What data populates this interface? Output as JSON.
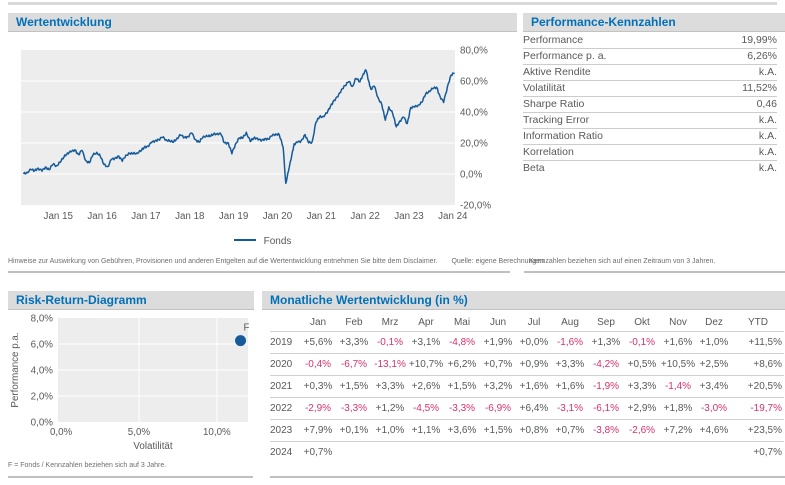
{
  "colors": {
    "accent_blue": "#0070b9",
    "line_blue": "#165b99",
    "negative_red": "#d5326e",
    "text_gray": "#58595b",
    "plot_bg": "#ededed"
  },
  "panels": {
    "performance": {
      "title": "Wertentwicklung"
    },
    "metrics": {
      "title": "Performance-Kennzahlen",
      "rows": [
        {
          "label": "Performance",
          "value": "19,99%"
        },
        {
          "label": "Performance p. a.",
          "value": "6,26%"
        },
        {
          "label": "Aktive Rendite",
          "value": "k.A."
        },
        {
          "label": "Volatilität",
          "value": "11,52%"
        },
        {
          "label": "Sharpe Ratio",
          "value": "0,46"
        },
        {
          "label": "Tracking Error",
          "value": "k.A."
        },
        {
          "label": "Information Ratio",
          "value": "k.A."
        },
        {
          "label": "Korrelation",
          "value": "k.A."
        },
        {
          "label": "Beta",
          "value": "k.A."
        }
      ],
      "footnote": "Kennzahlen beziehen sich auf einen Zeitraum von 3 Jahren."
    },
    "risk": {
      "title": "Risk-Return-Diagramm",
      "footnote": "F = Fonds / Kennzahlen beziehen sich auf 3 Jahre."
    },
    "monthly": {
      "title": "Monatliche Wertentwicklung (in %)",
      "columns": [
        "Jan",
        "Feb",
        "Mrz",
        "Apr",
        "Mai",
        "Jun",
        "Jul",
        "Aug",
        "Sep",
        "Okt",
        "Nov",
        "Dez",
        "YTD"
      ],
      "rows": [
        {
          "year": "2019",
          "values": [
            "+5,6%",
            "+3,3%",
            "-0,1%",
            "+3,1%",
            "-4,8%",
            "+1,9%",
            "+0,0%",
            "-1,6%",
            "+1,3%",
            "-0,1%",
            "+1,6%",
            "+1,0%",
            "+11,5%"
          ]
        },
        {
          "year": "2020",
          "values": [
            "-0,4%",
            "-6,7%",
            "-13,1%",
            "+10,7%",
            "+6,2%",
            "+0,7%",
            "+0,9%",
            "+3,3%",
            "-4,2%",
            "+0,5%",
            "+10,5%",
            "+2,5%",
            "+8,6%"
          ]
        },
        {
          "year": "2021",
          "values": [
            "+0,3%",
            "+1,5%",
            "+3,3%",
            "+2,6%",
            "+1,5%",
            "+3,2%",
            "+1,6%",
            "+1,6%",
            "-1,9%",
            "+3,3%",
            "-1,4%",
            "+3,4%",
            "+20,5%"
          ]
        },
        {
          "year": "2022",
          "values": [
            "-2,9%",
            "-3,3%",
            "+1,2%",
            "-4,5%",
            "-3,3%",
            "-6,9%",
            "+6,4%",
            "-3,1%",
            "-6,1%",
            "+2,9%",
            "+1,8%",
            "-3,0%",
            "-19,7%"
          ]
        },
        {
          "year": "2023",
          "values": [
            "+7,9%",
            "+0,1%",
            "+1,0%",
            "+1,1%",
            "+3,6%",
            "+1,5%",
            "+0,8%",
            "+0,7%",
            "-3,8%",
            "-2,6%",
            "+7,2%",
            "+4,6%",
            "+23,5%"
          ]
        },
        {
          "year": "2024",
          "values": [
            "+0,7%",
            "",
            "",
            "",
            "",
            "",
            "",
            "",
            "",
            "",
            "",
            "",
            "+0,7%"
          ]
        }
      ]
    }
  },
  "footnotes": {
    "disclaimer": "Hinweise zur Auswirkung von Gebühren, Provisionen und anderen Entgelten auf die Wertentwicklung entnehmen Sie bitte dem Disclaimer.",
    "source": "Quelle: eigene Berechnungen"
  },
  "chart_data": [
    {
      "type": "line",
      "title": "Wertentwicklung",
      "ylim": [
        -20,
        80
      ],
      "xlim": [
        2014.15,
        2024.05
      ],
      "grid": true,
      "legend_position": "bottom",
      "y_ticks": [
        {
          "v": 80,
          "label": "80,0%"
        },
        {
          "v": 60,
          "label": "60,0%"
        },
        {
          "v": 40,
          "label": "40,0%"
        },
        {
          "v": 20,
          "label": "20,0%"
        },
        {
          "v": 0,
          "label": "0,0%"
        },
        {
          "v": -20,
          "label": "-20,0%"
        }
      ],
      "x_ticks": [
        {
          "v": 2015,
          "label": "Jan 15"
        },
        {
          "v": 2016,
          "label": "Jan 16"
        },
        {
          "v": 2017,
          "label": "Jan 17"
        },
        {
          "v": 2018,
          "label": "Jan 18"
        },
        {
          "v": 2019,
          "label": "Jan 19"
        },
        {
          "v": 2020,
          "label": "Jan 20"
        },
        {
          "v": 2021,
          "label": "Jan 21"
        },
        {
          "v": 2022,
          "label": "Jan 22"
        },
        {
          "v": 2023,
          "label": "Jan 23"
        },
        {
          "v": 2024,
          "label": "Jan 24"
        }
      ],
      "series": [
        {
          "name": "Fonds",
          "points": [
            [
              2014.21,
              0.0
            ],
            [
              2014.29,
              1.2
            ],
            [
              2014.38,
              2.8
            ],
            [
              2014.46,
              2.2
            ],
            [
              2014.54,
              3.8
            ],
            [
              2014.63,
              1.8
            ],
            [
              2014.71,
              4.6
            ],
            [
              2014.79,
              2.8
            ],
            [
              2014.88,
              6.2
            ],
            [
              2014.96,
              5.4
            ],
            [
              2015.04,
              7.4
            ],
            [
              2015.13,
              11.0
            ],
            [
              2015.21,
              13.6
            ],
            [
              2015.29,
              14.2
            ],
            [
              2015.38,
              15.6
            ],
            [
              2015.46,
              12.6
            ],
            [
              2015.54,
              15.2
            ],
            [
              2015.63,
              8.6
            ],
            [
              2015.71,
              7.2
            ],
            [
              2015.79,
              12.2
            ],
            [
              2015.88,
              14.0
            ],
            [
              2015.96,
              11.4
            ],
            [
              2016.04,
              6.2
            ],
            [
              2016.13,
              4.8
            ],
            [
              2016.21,
              9.2
            ],
            [
              2016.29,
              10.2
            ],
            [
              2016.38,
              11.6
            ],
            [
              2016.46,
              8.2
            ],
            [
              2016.54,
              12.2
            ],
            [
              2016.63,
              13.2
            ],
            [
              2016.71,
              13.0
            ],
            [
              2016.79,
              13.6
            ],
            [
              2016.88,
              14.6
            ],
            [
              2016.96,
              17.2
            ],
            [
              2017.04,
              18.0
            ],
            [
              2017.13,
              20.2
            ],
            [
              2017.21,
              21.6
            ],
            [
              2017.29,
              22.2
            ],
            [
              2017.38,
              23.6
            ],
            [
              2017.46,
              22.2
            ],
            [
              2017.54,
              21.2
            ],
            [
              2017.63,
              20.6
            ],
            [
              2017.71,
              23.2
            ],
            [
              2017.79,
              25.0
            ],
            [
              2017.88,
              23.6
            ],
            [
              2017.96,
              24.2
            ],
            [
              2018.04,
              26.4
            ],
            [
              2018.13,
              22.2
            ],
            [
              2018.21,
              20.6
            ],
            [
              2018.29,
              23.2
            ],
            [
              2018.38,
              25.0
            ],
            [
              2018.46,
              24.2
            ],
            [
              2018.54,
              25.6
            ],
            [
              2018.63,
              26.2
            ],
            [
              2018.71,
              25.6
            ],
            [
              2018.79,
              20.2
            ],
            [
              2018.88,
              20.0
            ],
            [
              2018.96,
              13.0
            ],
            [
              2019.04,
              19.3
            ],
            [
              2019.13,
              23.3
            ],
            [
              2019.21,
              23.1
            ],
            [
              2019.29,
              27.0
            ],
            [
              2019.38,
              20.9
            ],
            [
              2019.46,
              23.2
            ],
            [
              2019.54,
              23.2
            ],
            [
              2019.63,
              21.2
            ],
            [
              2019.71,
              22.8
            ],
            [
              2019.79,
              22.6
            ],
            [
              2019.88,
              24.6
            ],
            [
              2019.96,
              25.9
            ],
            [
              2020.04,
              25.4
            ],
            [
              2020.13,
              17.0
            ],
            [
              2020.19,
              -6.0
            ],
            [
              2020.25,
              1.6
            ],
            [
              2020.33,
              12.5
            ],
            [
              2020.38,
              19.5
            ],
            [
              2020.46,
              20.3
            ],
            [
              2020.54,
              21.4
            ],
            [
              2020.63,
              25.4
            ],
            [
              2020.71,
              20.1
            ],
            [
              2020.79,
              20.7
            ],
            [
              2020.88,
              33.4
            ],
            [
              2020.96,
              36.8
            ],
            [
              2021.04,
              37.2
            ],
            [
              2021.13,
              39.2
            ],
            [
              2021.21,
              43.8
            ],
            [
              2021.29,
              47.6
            ],
            [
              2021.38,
              49.8
            ],
            [
              2021.46,
              54.6
            ],
            [
              2021.54,
              57.0
            ],
            [
              2021.63,
              59.6
            ],
            [
              2021.71,
              56.5
            ],
            [
              2021.79,
              61.7
            ],
            [
              2021.88,
              59.4
            ],
            [
              2021.96,
              64.8
            ],
            [
              2022.02,
              67.0
            ],
            [
              2022.08,
              60.1
            ],
            [
              2022.13,
              54.8
            ],
            [
              2022.21,
              56.6
            ],
            [
              2022.29,
              49.6
            ],
            [
              2022.38,
              44.7
            ],
            [
              2022.46,
              34.7
            ],
            [
              2022.54,
              43.3
            ],
            [
              2022.63,
              38.9
            ],
            [
              2022.71,
              30.4
            ],
            [
              2022.79,
              34.2
            ],
            [
              2022.88,
              36.6
            ],
            [
              2022.96,
              32.5
            ],
            [
              2023.04,
              42.9
            ],
            [
              2023.13,
              43.1
            ],
            [
              2023.21,
              44.5
            ],
            [
              2023.29,
              46.1
            ],
            [
              2023.38,
              51.4
            ],
            [
              2023.46,
              53.6
            ],
            [
              2023.54,
              54.9
            ],
            [
              2023.63,
              56.0
            ],
            [
              2023.71,
              50.0
            ],
            [
              2023.79,
              46.1
            ],
            [
              2023.88,
              56.6
            ],
            [
              2023.96,
              63.9
            ],
            [
              2024.04,
              65.0
            ]
          ]
        }
      ]
    },
    {
      "type": "scatter",
      "title": "Risk-Return-Diagramm",
      "xlabel": "Volatilität",
      "ylabel": "Performance p.a.",
      "xlim": [
        -0.2,
        12.0
      ],
      "ylim": [
        0,
        8
      ],
      "grid": true,
      "points": [
        {
          "label": "F",
          "x": 11.52,
          "y": 6.26
        }
      ],
      "x_ticks": [
        {
          "v": 0,
          "label": "0,0%"
        },
        {
          "v": 5,
          "label": "5,0%"
        },
        {
          "v": 10,
          "label": "10,0%"
        }
      ],
      "y_ticks": [
        {
          "v": 0,
          "label": "0,0%"
        },
        {
          "v": 2,
          "label": "2,0%"
        },
        {
          "v": 4,
          "label": "4,0%"
        },
        {
          "v": 6,
          "label": "6,0%"
        },
        {
          "v": 8,
          "label": "8,0%"
        }
      ]
    }
  ]
}
